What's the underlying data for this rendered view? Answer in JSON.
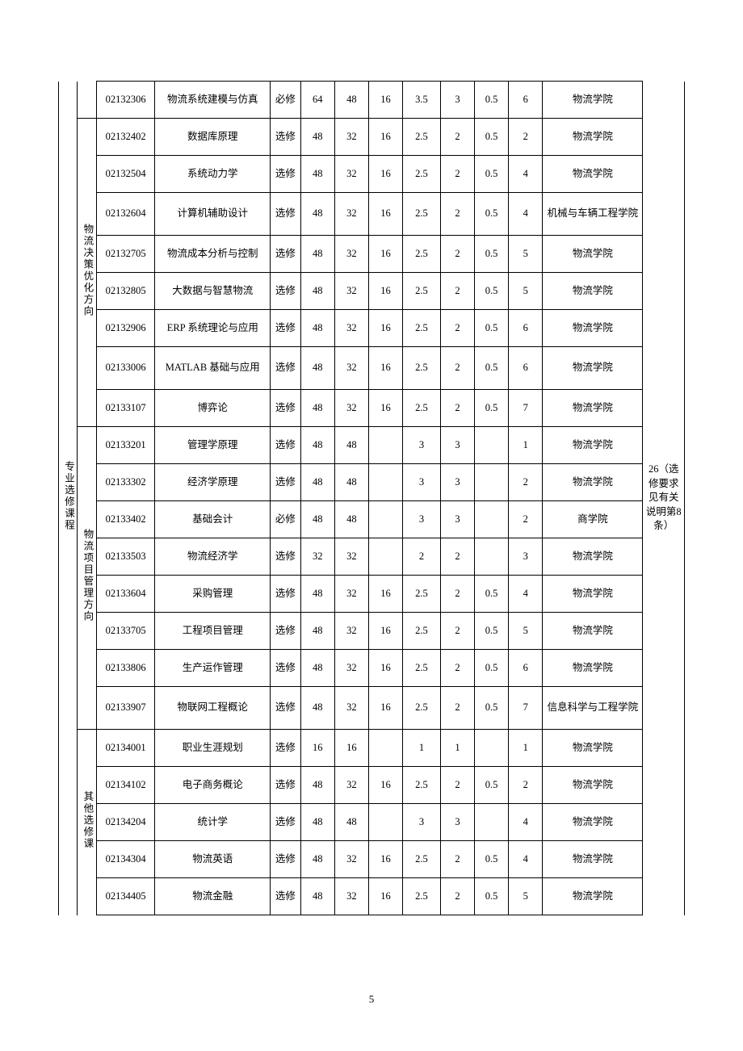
{
  "page_number": "5",
  "side_note": "26（选修要求见有关说明第8 条）",
  "group_main_label": "专业选修课程",
  "groups": {
    "g0": {
      "label": ""
    },
    "g1": {
      "label": "物流决策优化方向"
    },
    "g2": {
      "label": "物流项目管理方向"
    },
    "g3": {
      "label": "其他选修课"
    }
  },
  "row0": {
    "code": "02132306",
    "name": "物流系统建模与仿真",
    "req": "必修",
    "c1": "64",
    "c2": "48",
    "c3": "16",
    "c4": "3.5",
    "c5": "3",
    "c6": "0.5",
    "c7": "6",
    "dept": "物流学院"
  },
  "row1": {
    "code": "02132402",
    "name": "数据库原理",
    "req": "选修",
    "c1": "48",
    "c2": "32",
    "c3": "16",
    "c4": "2.5",
    "c5": "2",
    "c6": "0.5",
    "c7": "2",
    "dept": "物流学院"
  },
  "row2": {
    "code": "02132504",
    "name": "系统动力学",
    "req": "选修",
    "c1": "48",
    "c2": "32",
    "c3": "16",
    "c4": "2.5",
    "c5": "2",
    "c6": "0.5",
    "c7": "4",
    "dept": "物流学院"
  },
  "row3": {
    "code": "02132604",
    "name": "计算机辅助设计",
    "req": "选修",
    "c1": "48",
    "c2": "32",
    "c3": "16",
    "c4": "2.5",
    "c5": "2",
    "c6": "0.5",
    "c7": "4",
    "dept": "机械与车辆工程学院"
  },
  "row4": {
    "code": "02132705",
    "name": "物流成本分析与控制",
    "req": "选修",
    "c1": "48",
    "c2": "32",
    "c3": "16",
    "c4": "2.5",
    "c5": "2",
    "c6": "0.5",
    "c7": "5",
    "dept": "物流学院"
  },
  "row5": {
    "code": "02132805",
    "name": "大数据与智慧物流",
    "req": "选修",
    "c1": "48",
    "c2": "32",
    "c3": "16",
    "c4": "2.5",
    "c5": "2",
    "c6": "0.5",
    "c7": "5",
    "dept": "物流学院"
  },
  "row6": {
    "code": "02132906",
    "name": "ERP 系统理论与应用",
    "req": "选修",
    "c1": "48",
    "c2": "32",
    "c3": "16",
    "c4": "2.5",
    "c5": "2",
    "c6": "0.5",
    "c7": "6",
    "dept": "物流学院"
  },
  "row7": {
    "code": "02133006",
    "name": "MATLAB 基础与应用",
    "req": "选修",
    "c1": "48",
    "c2": "32",
    "c3": "16",
    "c4": "2.5",
    "c5": "2",
    "c6": "0.5",
    "c7": "6",
    "dept": "物流学院"
  },
  "row8": {
    "code": "02133107",
    "name": "博弈论",
    "req": "选修",
    "c1": "48",
    "c2": "32",
    "c3": "16",
    "c4": "2.5",
    "c5": "2",
    "c6": "0.5",
    "c7": "7",
    "dept": "物流学院"
  },
  "row9": {
    "code": "02133201",
    "name": "管理学原理",
    "req": "选修",
    "c1": "48",
    "c2": "48",
    "c3": "",
    "c4": "3",
    "c5": "3",
    "c6": "",
    "c7": "1",
    "dept": "物流学院"
  },
  "row10": {
    "code": "02133302",
    "name": "经济学原理",
    "req": "选修",
    "c1": "48",
    "c2": "48",
    "c3": "",
    "c4": "3",
    "c5": "3",
    "c6": "",
    "c7": "2",
    "dept": "物流学院"
  },
  "row11": {
    "code": "02133402",
    "name": "基础会计",
    "req": "必修",
    "c1": "48",
    "c2": "48",
    "c3": "",
    "c4": "3",
    "c5": "3",
    "c6": "",
    "c7": "2",
    "dept": "商学院"
  },
  "row12": {
    "code": "02133503",
    "name": "物流经济学",
    "req": "选修",
    "c1": "32",
    "c2": "32",
    "c3": "",
    "c4": "2",
    "c5": "2",
    "c6": "",
    "c7": "3",
    "dept": "物流学院"
  },
  "row13": {
    "code": "02133604",
    "name": "采购管理",
    "req": "选修",
    "c1": "48",
    "c2": "32",
    "c3": "16",
    "c4": "2.5",
    "c5": "2",
    "c6": "0.5",
    "c7": "4",
    "dept": "物流学院"
  },
  "row14": {
    "code": "02133705",
    "name": "工程项目管理",
    "req": "选修",
    "c1": "48",
    "c2": "32",
    "c3": "16",
    "c4": "2.5",
    "c5": "2",
    "c6": "0.5",
    "c7": "5",
    "dept": "物流学院"
  },
  "row15": {
    "code": "02133806",
    "name": "生产运作管理",
    "req": "选修",
    "c1": "48",
    "c2": "32",
    "c3": "16",
    "c4": "2.5",
    "c5": "2",
    "c6": "0.5",
    "c7": "6",
    "dept": "物流学院"
  },
  "row16": {
    "code": "02133907",
    "name": "物联网工程概论",
    "req": "选修",
    "c1": "48",
    "c2": "32",
    "c3": "16",
    "c4": "2.5",
    "c5": "2",
    "c6": "0.5",
    "c7": "7",
    "dept": "信息科学与工程学院"
  },
  "row17": {
    "code": "02134001",
    "name": "职业生涯规划",
    "req": "选修",
    "c1": "16",
    "c2": "16",
    "c3": "",
    "c4": "1",
    "c5": "1",
    "c6": "",
    "c7": "1",
    "dept": "物流学院"
  },
  "row18": {
    "code": "02134102",
    "name": "电子商务概论",
    "req": "选修",
    "c1": "48",
    "c2": "32",
    "c3": "16",
    "c4": "2.5",
    "c5": "2",
    "c6": "0.5",
    "c7": "2",
    "dept": "物流学院"
  },
  "row19": {
    "code": "02134204",
    "name": "统计学",
    "req": "选修",
    "c1": "48",
    "c2": "48",
    "c3": "",
    "c4": "3",
    "c5": "3",
    "c6": "",
    "c7": "4",
    "dept": "物流学院"
  },
  "row20": {
    "code": "02134304",
    "name": "物流英语",
    "req": "选修",
    "c1": "48",
    "c2": "32",
    "c3": "16",
    "c4": "2.5",
    "c5": "2",
    "c6": "0.5",
    "c7": "4",
    "dept": "物流学院"
  },
  "row21": {
    "code": "02134405",
    "name": "物流金融",
    "req": "选修",
    "c1": "48",
    "c2": "32",
    "c3": "16",
    "c4": "2.5",
    "c5": "2",
    "c6": "0.5",
    "c7": "5",
    "dept": "物流学院"
  }
}
